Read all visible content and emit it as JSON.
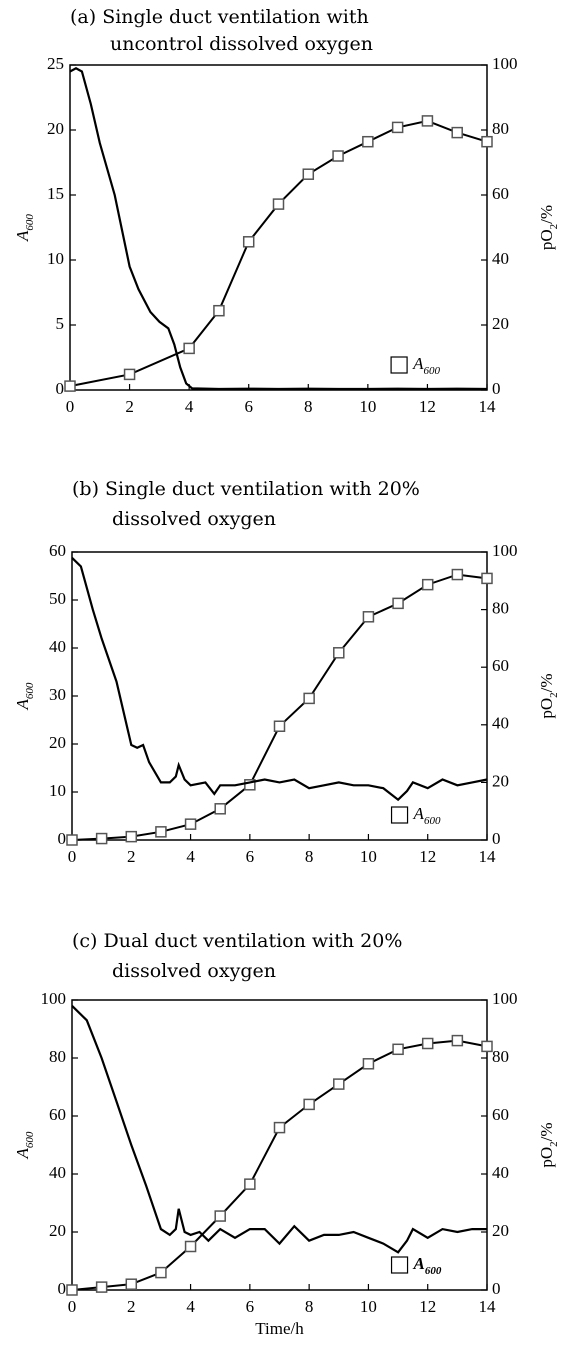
{
  "chart_data": [
    {
      "type": "line",
      "title": [
        "(a) Single duct ventilation with",
        "uncontrol dissolved oxygen"
      ],
      "ylabel": "A600",
      "y2label": "pO2/%",
      "xlim": [
        0,
        14
      ],
      "xticks": [
        0,
        2,
        4,
        6,
        8,
        10,
        12,
        14
      ],
      "ylim": [
        0,
        25
      ],
      "yticks": [
        0,
        5,
        10,
        15,
        20,
        25
      ],
      "y2lim": [
        0,
        100
      ],
      "y2ticks": [
        0,
        20,
        40,
        60,
        80,
        100
      ],
      "legend": "lower right",
      "series": [
        {
          "name": "A600",
          "color": "#555555",
          "marker": "square",
          "x": [
            0,
            2,
            4,
            5,
            6,
            7,
            8,
            9,
            10,
            11,
            12,
            13,
            14
          ],
          "values": [
            0.3,
            1.2,
            3.2,
            6.1,
            11.4,
            14.3,
            16.6,
            18.0,
            19.1,
            20.2,
            20.7,
            19.8,
            19.1
          ]
        },
        {
          "color": "#000000",
          "axis": "y2",
          "x": [
            0,
            0.2,
            0.4,
            0.7,
            1,
            1.5,
            2,
            2.3,
            2.7,
            3,
            3.3,
            3.5,
            3.7,
            3.9,
            4.1,
            5,
            6,
            7,
            8,
            9,
            10,
            11,
            12,
            13,
            14
          ],
          "values": [
            98,
            99,
            98,
            88,
            76,
            60,
            38,
            31,
            24,
            21,
            19,
            14,
            7,
            2,
            0.5,
            0.3,
            0.4,
            0.3,
            0.4,
            0.3,
            0.3,
            0.4,
            0.3,
            0.4,
            0.3
          ]
        }
      ]
    },
    {
      "type": "line",
      "title": [
        "(b) Single duct ventilation with 20%",
        "dissolved oxygen"
      ],
      "ylabel": "A600",
      "y2label": "pO2/%",
      "xlim": [
        0,
        14
      ],
      "xticks": [
        0,
        2,
        4,
        6,
        8,
        10,
        12,
        14
      ],
      "ylim": [
        0,
        60
      ],
      "yticks": [
        0,
        10,
        20,
        30,
        40,
        50,
        60
      ],
      "y2lim": [
        0,
        100
      ],
      "y2ticks": [
        0,
        20,
        40,
        60,
        80,
        100
      ],
      "legend": "lower right",
      "series": [
        {
          "name": "A600",
          "color": "#555555",
          "marker": "square",
          "x": [
            0,
            1,
            2,
            3,
            4,
            5,
            6,
            7,
            8,
            9,
            10,
            11,
            12,
            13,
            14
          ],
          "values": [
            0,
            0.3,
            0.7,
            1.7,
            3.3,
            6.5,
            11.5,
            23.7,
            29.5,
            39,
            46.5,
            49.3,
            53.2,
            55.3,
            54.5
          ]
        },
        {
          "color": "#000000",
          "axis": "y2",
          "x": [
            0,
            0.3,
            0.7,
            1,
            1.5,
            2,
            2.2,
            2.4,
            2.6,
            3,
            3.3,
            3.5,
            3.6,
            3.8,
            4,
            4.5,
            4.8,
            5,
            5.5,
            6,
            6.5,
            7,
            7.5,
            8,
            8.5,
            9,
            9.5,
            10,
            10.5,
            11,
            11.3,
            11.5,
            12,
            12.5,
            13,
            13.5,
            14
          ],
          "values": [
            98,
            95,
            80,
            70,
            55,
            33,
            32,
            33,
            27,
            20,
            20,
            22,
            26,
            21,
            19,
            20,
            16,
            19,
            19,
            20,
            21,
            20,
            21,
            18,
            19,
            20,
            19,
            19,
            18,
            14,
            17,
            20,
            18,
            21,
            19,
            20,
            21
          ]
        }
      ]
    },
    {
      "type": "line",
      "title": [
        "(c) Dual duct ventilation with 20%",
        "dissolved oxygen"
      ],
      "xlabel": "Time/h",
      "ylabel": "A600",
      "y2label": "pO2/%",
      "xlim": [
        0,
        14
      ],
      "xticks": [
        0,
        2,
        4,
        6,
        8,
        10,
        12,
        14
      ],
      "ylim": [
        0,
        100
      ],
      "yticks": [
        0,
        20,
        40,
        60,
        80,
        100
      ],
      "y2lim": [
        0,
        100
      ],
      "y2ticks": [
        0,
        20,
        40,
        60,
        80,
        100
      ],
      "legend": "lower right",
      "series": [
        {
          "name": "A600",
          "color": "#555555",
          "marker": "square",
          "x": [
            0,
            1,
            2,
            3,
            4,
            5,
            6,
            7,
            8,
            9,
            10,
            11,
            12,
            13,
            14
          ],
          "values": [
            0,
            1,
            2,
            6,
            15,
            25.5,
            36.5,
            56,
            64,
            71,
            78,
            83,
            85,
            86,
            84
          ]
        },
        {
          "color": "#000000",
          "axis": "y2",
          "x": [
            0,
            0.5,
            1,
            1.5,
            2,
            2.5,
            3,
            3.3,
            3.5,
            3.6,
            3.8,
            4,
            4.3,
            4.6,
            5,
            5.5,
            6,
            6.5,
            7,
            7.5,
            8,
            8.5,
            9,
            9.5,
            10,
            10.5,
            11,
            11.3,
            11.5,
            12,
            12.5,
            13,
            13.5,
            14
          ],
          "values": [
            98,
            93,
            80,
            65,
            50,
            36,
            21,
            19,
            21,
            28,
            20,
            19,
            20,
            17,
            21,
            18,
            21,
            21,
            16,
            22,
            17,
            19,
            19,
            20,
            18,
            16,
            13,
            17,
            21,
            18,
            21,
            20,
            21,
            21
          ]
        }
      ]
    }
  ]
}
